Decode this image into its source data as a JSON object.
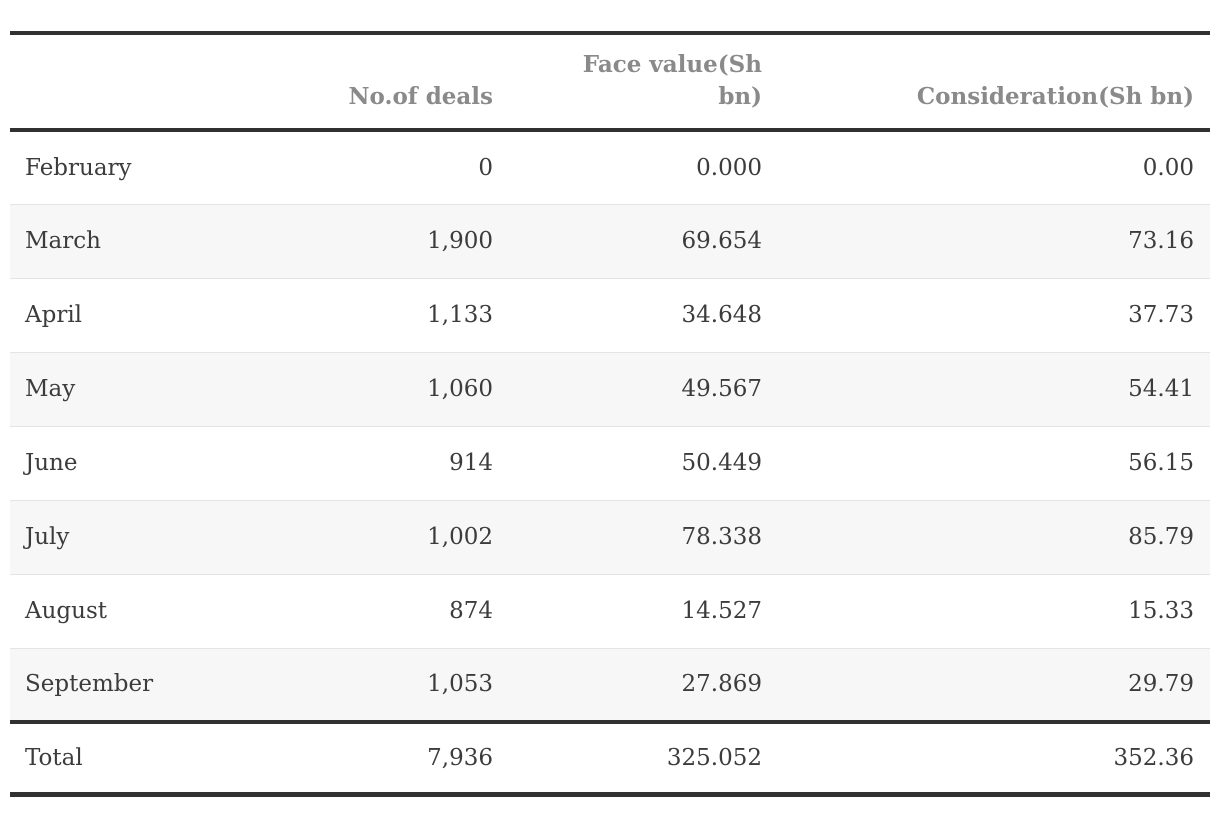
{
  "colors": {
    "rule": "#313131",
    "row_stripe": "#f7f7f7",
    "row_divider": "#e4e4e4",
    "header_text": "#8a8a8a",
    "body_text": "#3c3c3c",
    "background": "#ffffff"
  },
  "table": {
    "columns": [
      {
        "label": ""
      },
      {
        "label": "No.of deals"
      },
      {
        "label": "Face value(Sh\nbn)"
      },
      {
        "label": "Consideration(Sh bn)"
      }
    ],
    "rows": [
      {
        "label": "February",
        "deals": "0",
        "face_value": "0.000",
        "consideration": "0.00",
        "is_total": false
      },
      {
        "label": "March",
        "deals": "1,900",
        "face_value": "69.654",
        "consideration": "73.16",
        "is_total": false
      },
      {
        "label": "April",
        "deals": "1,133",
        "face_value": "34.648",
        "consideration": "37.73",
        "is_total": false
      },
      {
        "label": "May",
        "deals": "1,060",
        "face_value": "49.567",
        "consideration": "54.41",
        "is_total": false
      },
      {
        "label": "June",
        "deals": "914",
        "face_value": "50.449",
        "consideration": "56.15",
        "is_total": false
      },
      {
        "label": "July",
        "deals": "1,002",
        "face_value": "78.338",
        "consideration": "85.79",
        "is_total": false
      },
      {
        "label": "August",
        "deals": "874",
        "face_value": "14.527",
        "consideration": "15.33",
        "is_total": false
      },
      {
        "label": "September",
        "deals": "1,053",
        "face_value": "27.869",
        "consideration": "29.79",
        "is_total": false
      },
      {
        "label": "Total",
        "deals": "7,936",
        "face_value": "325.052",
        "consideration": "352.36",
        "is_total": true
      }
    ]
  },
  "chart_data": {
    "type": "table",
    "title": "",
    "columns": [
      "",
      "No.of deals",
      "Face value(Sh bn)",
      "Consideration(Sh bn)"
    ],
    "rows": [
      [
        "February",
        0,
        0.0,
        0.0
      ],
      [
        "March",
        1900,
        69.654,
        73.16
      ],
      [
        "April",
        1133,
        34.648,
        37.73
      ],
      [
        "May",
        1060,
        49.567,
        54.41
      ],
      [
        "June",
        914,
        50.449,
        56.15
      ],
      [
        "July",
        1002,
        78.338,
        85.79
      ],
      [
        "August",
        874,
        14.527,
        15.33
      ],
      [
        "September",
        1053,
        27.869,
        29.79
      ],
      [
        "Total",
        7936,
        325.052,
        352.36
      ]
    ]
  }
}
